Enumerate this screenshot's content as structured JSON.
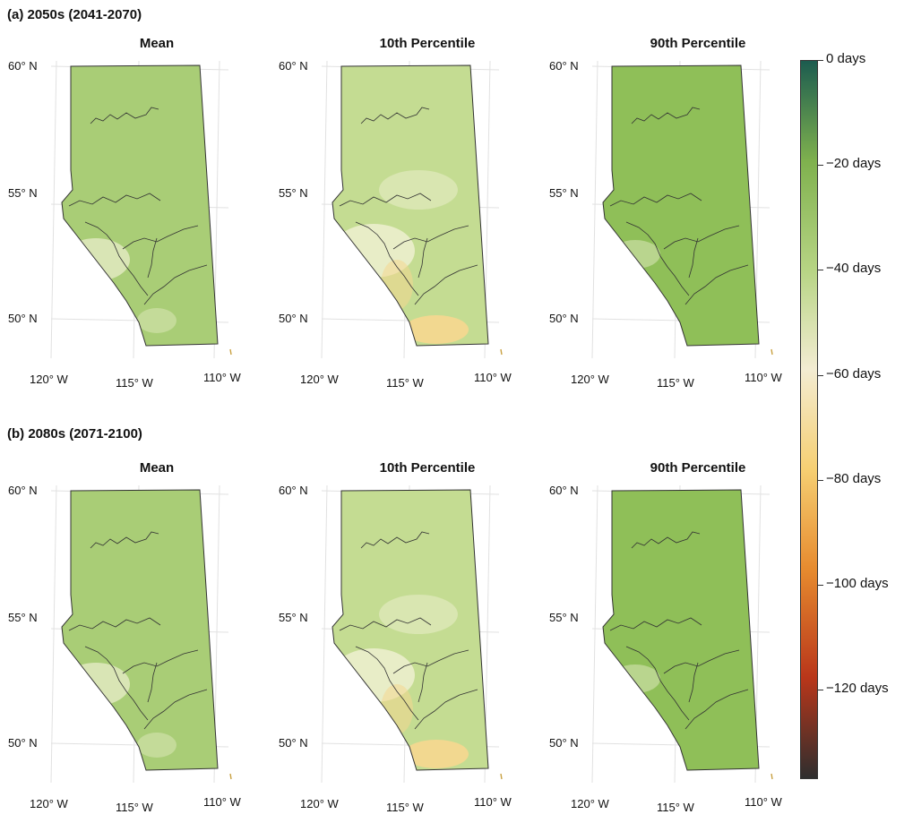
{
  "sections": [
    {
      "title": "(a) 2050s (2041-2070)",
      "panels": [
        {
          "title": "Mean"
        },
        {
          "title": "10th Percentile"
        },
        {
          "title": "90th Percentile"
        }
      ]
    },
    {
      "title": "(b) 2080s (2071-2100)",
      "panels": [
        {
          "title": "Mean"
        },
        {
          "title": "10th Percentile"
        },
        {
          "title": "90th Percentile"
        }
      ]
    }
  ],
  "axis_labels": {
    "lat": [
      "60° N",
      "55° N",
      "50° N"
    ],
    "lon": [
      "120° W",
      "115° W",
      "110° W"
    ]
  },
  "colorbar": {
    "labels": [
      "0 days",
      "−20 days",
      "−40 days",
      "−60 days",
      "−80 days",
      "−100 days",
      "−120 days"
    ],
    "ticks": [
      0,
      -20,
      -40,
      -60,
      -80,
      -100,
      -120
    ],
    "range": [
      -137,
      0
    ],
    "colors": [
      "#2e2e2e",
      "#b9361a",
      "#e68a2e",
      "#f6cf72",
      "#f3ecd2",
      "#b6d483",
      "#7fb14e",
      "#1c5c4f"
    ]
  },
  "colors": {
    "mean": "#a9cd76",
    "p10": "#c4dc92",
    "p90": "#8fbf58",
    "pale": "#eef0d0",
    "orange": "#f4d790",
    "border": "#333333"
  }
}
